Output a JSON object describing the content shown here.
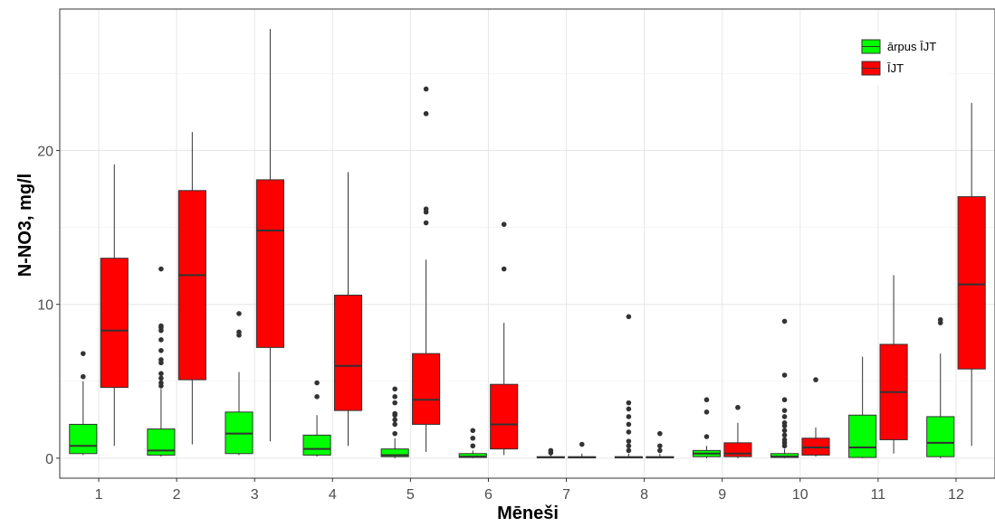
{
  "chart_data": {
    "type": "boxplot",
    "title": "",
    "xlabel": "Mēneši",
    "ylabel": "N-NO3, mg/l",
    "ylim": [
      -1.3,
      29.2
    ],
    "y_ticks": [
      0,
      10,
      20
    ],
    "grid": true,
    "legend_position": "top-right",
    "categories": [
      "1",
      "2",
      "3",
      "4",
      "5",
      "6",
      "7",
      "8",
      "9",
      "10",
      "11",
      "12"
    ],
    "series": [
      {
        "name": "ārpus ĪJT",
        "color": "#00ff00",
        "boxes": [
          {
            "lower_whisker": 0.2,
            "q1": 0.3,
            "median": 0.8,
            "q3": 2.2,
            "upper_whisker": 5.0,
            "outliers": [
              5.3,
              6.8
            ]
          },
          {
            "lower_whisker": 0.1,
            "q1": 0.2,
            "median": 0.5,
            "q3": 1.9,
            "upper_whisker": 4.5,
            "outliers": [
              4.7,
              4.9,
              5.2,
              5.5,
              6.2,
              6.4,
              7.0,
              7.7,
              8.3,
              8.5,
              8.6,
              12.3
            ]
          },
          {
            "lower_whisker": 0.2,
            "q1": 0.3,
            "median": 1.6,
            "q3": 3.0,
            "upper_whisker": 5.6,
            "outliers": [
              8.0,
              8.2,
              9.4
            ]
          },
          {
            "lower_whisker": 0.1,
            "q1": 0.2,
            "median": 0.6,
            "q3": 1.5,
            "upper_whisker": 2.8,
            "outliers": [
              4.0,
              4.9
            ]
          },
          {
            "lower_whisker": 0.0,
            "q1": 0.1,
            "median": 0.2,
            "q3": 0.6,
            "upper_whisker": 1.3,
            "outliers": [
              1.6,
              2.2,
              2.5,
              2.8,
              2.9,
              3.6,
              4.0,
              4.5
            ]
          },
          {
            "lower_whisker": 0.0,
            "q1": 0.05,
            "median": 0.1,
            "q3": 0.3,
            "upper_whisker": 0.5,
            "outliers": [
              0.8,
              1.3,
              1.8
            ]
          },
          {
            "lower_whisker": 0.0,
            "q1": 0.02,
            "median": 0.05,
            "q3": 0.1,
            "upper_whisker": 0.2,
            "outliers": [
              0.35,
              0.5
            ]
          },
          {
            "lower_whisker": 0.0,
            "q1": 0.02,
            "median": 0.05,
            "q3": 0.1,
            "upper_whisker": 0.3,
            "outliers": [
              0.5,
              0.8,
              1.1,
              1.7,
              2.2,
              2.7,
              3.2,
              3.6,
              9.2
            ]
          },
          {
            "lower_whisker": 0.0,
            "q1": 0.1,
            "median": 0.3,
            "q3": 0.5,
            "upper_whisker": 0.8,
            "outliers": [
              1.4,
              3.0,
              3.8
            ]
          },
          {
            "lower_whisker": 0.0,
            "q1": 0.05,
            "median": 0.1,
            "q3": 0.3,
            "upper_whisker": 0.6,
            "outliers": [
              0.8,
              1.0,
              1.2,
              1.5,
              1.8,
              2.1,
              2.3,
              2.7,
              3.1,
              3.8,
              5.4,
              8.9
            ]
          },
          {
            "lower_whisker": 0.0,
            "q1": 0.05,
            "median": 0.7,
            "q3": 2.8,
            "upper_whisker": 6.6,
            "outliers": []
          },
          {
            "lower_whisker": 0.0,
            "q1": 0.1,
            "median": 1.0,
            "q3": 2.7,
            "upper_whisker": 6.8,
            "outliers": [
              8.8,
              9.0
            ]
          }
        ]
      },
      {
        "name": "ĪJT",
        "color": "#ff0000",
        "boxes": [
          {
            "lower_whisker": 0.8,
            "q1": 4.6,
            "median": 8.3,
            "q3": 13.0,
            "upper_whisker": 19.1,
            "outliers": []
          },
          {
            "lower_whisker": 0.9,
            "q1": 5.1,
            "median": 11.9,
            "q3": 17.4,
            "upper_whisker": 21.2,
            "outliers": []
          },
          {
            "lower_whisker": 1.1,
            "q1": 7.2,
            "median": 14.8,
            "q3": 18.1,
            "upper_whisker": 27.9,
            "outliers": []
          },
          {
            "lower_whisker": 0.8,
            "q1": 3.1,
            "median": 6.0,
            "q3": 10.6,
            "upper_whisker": 18.6,
            "outliers": []
          },
          {
            "lower_whisker": 0.4,
            "q1": 2.2,
            "median": 3.8,
            "q3": 6.8,
            "upper_whisker": 12.9,
            "outliers": [
              15.3,
              16.0,
              16.2,
              22.4,
              24.0
            ]
          },
          {
            "lower_whisker": 0.2,
            "q1": 0.6,
            "median": 2.2,
            "q3": 4.8,
            "upper_whisker": 8.8,
            "outliers": [
              12.3,
              15.2
            ]
          },
          {
            "lower_whisker": 0.0,
            "q1": 0.02,
            "median": 0.05,
            "q3": 0.1,
            "upper_whisker": 0.3,
            "outliers": [
              0.9
            ]
          },
          {
            "lower_whisker": 0.0,
            "q1": 0.02,
            "median": 0.05,
            "q3": 0.1,
            "upper_whisker": 0.3,
            "outliers": [
              0.5,
              0.8,
              1.6
            ]
          },
          {
            "lower_whisker": 0.0,
            "q1": 0.1,
            "median": 0.3,
            "q3": 1.0,
            "upper_whisker": 2.3,
            "outliers": [
              3.3
            ]
          },
          {
            "lower_whisker": 0.1,
            "q1": 0.2,
            "median": 0.7,
            "q3": 1.3,
            "upper_whisker": 2.0,
            "outliers": [
              5.1
            ]
          },
          {
            "lower_whisker": 0.3,
            "q1": 1.2,
            "median": 4.3,
            "q3": 7.4,
            "upper_whisker": 11.9,
            "outliers": []
          },
          {
            "lower_whisker": 0.8,
            "q1": 5.8,
            "median": 11.3,
            "q3": 17.0,
            "upper_whisker": 23.1,
            "outliers": []
          }
        ]
      }
    ]
  }
}
